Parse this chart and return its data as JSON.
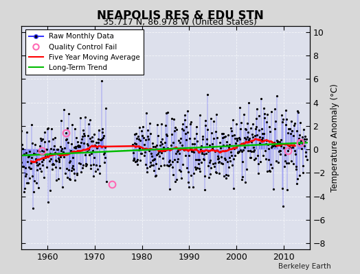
{
  "title": "NEAPOLIS RES & EDU STN",
  "subtitle": "35.717 N, 86.978 W (United States)",
  "ylabel": "Temperature Anomaly (°C)",
  "watermark": "Berkeley Earth",
  "year_start": 1954,
  "year_end": 2014,
  "xlim": [
    1954.5,
    2015.5
  ],
  "ylim": [
    -8.5,
    10.5
  ],
  "yticks": [
    -8,
    -6,
    -4,
    -2,
    0,
    2,
    4,
    6,
    8,
    10
  ],
  "xticks": [
    1960,
    1970,
    1980,
    1990,
    2000,
    2010
  ],
  "fig_bg_color": "#d8d8d8",
  "plot_bg_color": "#dde0ec",
  "raw_color": "#3333ff",
  "raw_dot_color": "#000000",
  "ma_color": "#ff0000",
  "trend_color": "#00bb00",
  "qc_color": "#ff69b4",
  "grid_color": "#ffffff",
  "trend_slope": 0.018,
  "trend_intercept": -0.52,
  "seed": 42,
  "gap_start_year": 1972.5,
  "gap_end_year": 1978.0,
  "qc_fail_indices": [
    58,
    118,
    236,
    682,
    714
  ]
}
